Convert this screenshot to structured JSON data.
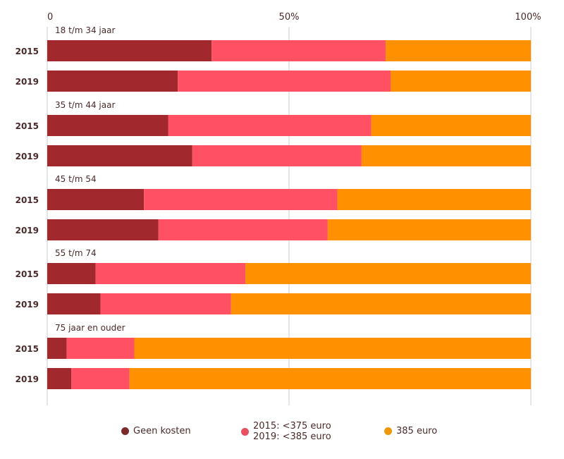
{
  "chart_data": {
    "type": "bar",
    "orientation": "horizontal",
    "stacked": true,
    "xlim": [
      0,
      100
    ],
    "x_ticks": [
      "0",
      "50%",
      "100%"
    ],
    "grid": true,
    "legend_position": "bottom",
    "series": [
      {
        "name": "Geen kosten",
        "color": "#a1282c"
      },
      {
        "name": "2015: <375 euro\n2019: <385 euro",
        "color": "#ff5064"
      },
      {
        "name": "385 euro",
        "color": "#ff9100"
      }
    ],
    "groups": [
      {
        "label": "18 t/m 34 jaar",
        "rows": [
          {
            "year": "2015",
            "values": [
              34,
              36,
              30
            ]
          },
          {
            "year": "2019",
            "values": [
              27,
              44,
              29
            ]
          }
        ]
      },
      {
        "label": "35 t/m 44 jaar",
        "rows": [
          {
            "year": "2015",
            "values": [
              25,
              42,
              33
            ]
          },
          {
            "year": "2019",
            "values": [
              30,
              35,
              35
            ]
          }
        ]
      },
      {
        "label": "45 t/m 54",
        "rows": [
          {
            "year": "2015",
            "values": [
              20,
              40,
              40
            ]
          },
          {
            "year": "2019",
            "values": [
              23,
              35,
              42
            ]
          }
        ]
      },
      {
        "label": "55 t/m 74",
        "rows": [
          {
            "year": "2015",
            "values": [
              10,
              31,
              59
            ]
          },
          {
            "year": "2019",
            "values": [
              11,
              27,
              62
            ]
          }
        ]
      },
      {
        "label": "75 jaar en ouder",
        "rows": [
          {
            "year": "2015",
            "values": [
              4,
              14,
              82
            ]
          },
          {
            "year": "2019",
            "values": [
              5,
              12,
              83
            ]
          }
        ]
      }
    ]
  },
  "legend": {
    "geen": "Geen kosten",
    "lower_line1": "2015: <375 euro",
    "lower_line2": "2019: <385 euro",
    "full": "385 euro"
  }
}
